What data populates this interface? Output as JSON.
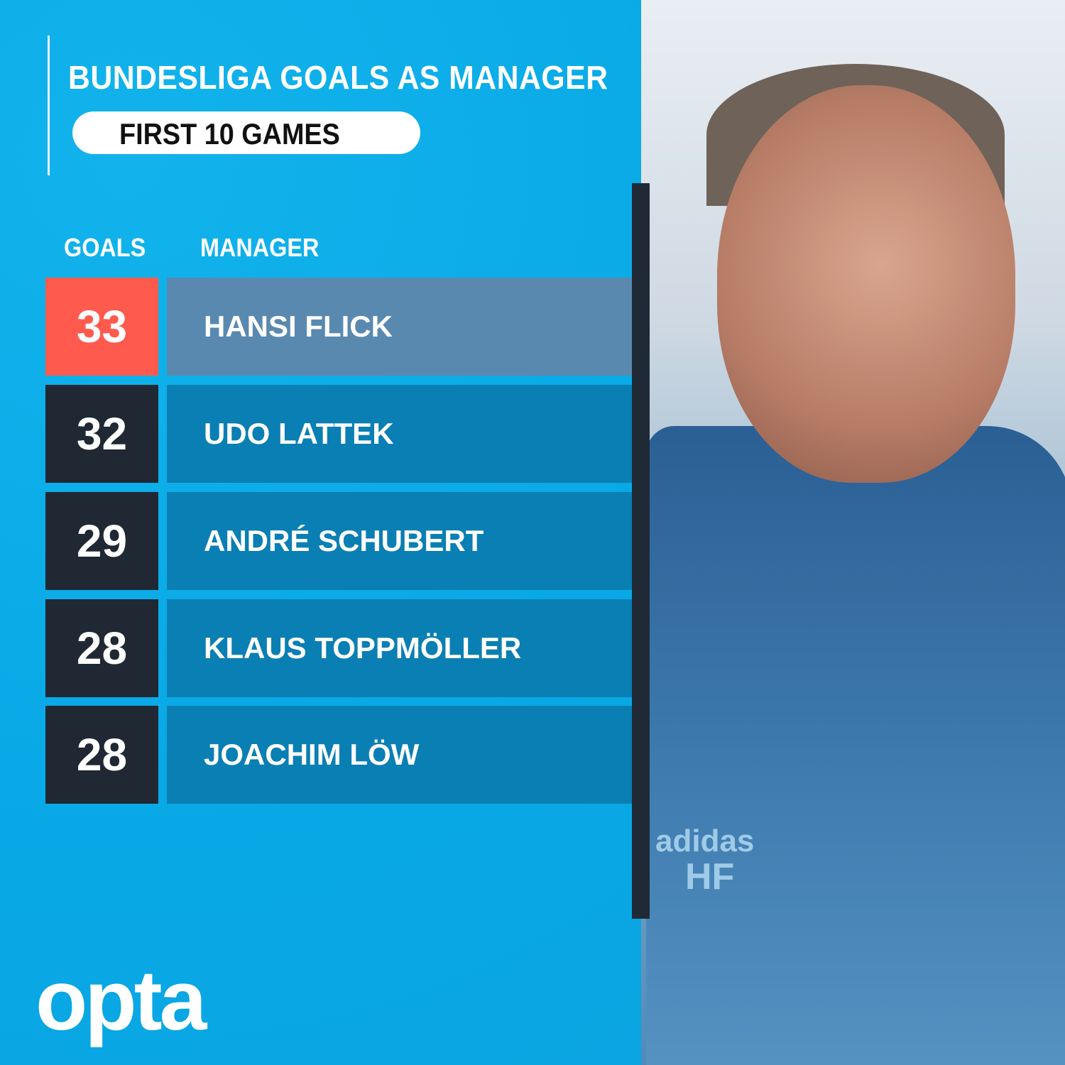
{
  "header": {
    "title": "BUNDESLIGA GOALS AS MANAGER",
    "subtitle": "FIRST 10 GAMES"
  },
  "chart_data": {
    "type": "table",
    "title": "BUNDESLIGA GOALS AS MANAGER",
    "subtitle": "FIRST 10 GAMES",
    "columns": [
      "GOALS",
      "MANAGER"
    ],
    "rows": [
      {
        "goals": "33",
        "manager": "HANSI FLICK",
        "highlight": true
      },
      {
        "goals": "32",
        "manager": "UDO LATTEK",
        "highlight": false
      },
      {
        "goals": "29",
        "manager": "ANDRÉ SCHUBERT",
        "highlight": false
      },
      {
        "goals": "28",
        "manager": "KLAUS TOPPMÖLLER",
        "highlight": false
      },
      {
        "goals": "28",
        "manager": "JOACHIM LÖW",
        "highlight": false
      }
    ]
  },
  "branding": {
    "logo": "opta"
  },
  "photo": {
    "jacket_text": [
      "adidas",
      "HF"
    ]
  },
  "colors": {
    "background": "#0aaee8",
    "highlight_goal": "#ff5a4e",
    "highlight_name": "#5a89b0",
    "goal_box": "#1f2833",
    "name_box": "#0a7fb3"
  }
}
